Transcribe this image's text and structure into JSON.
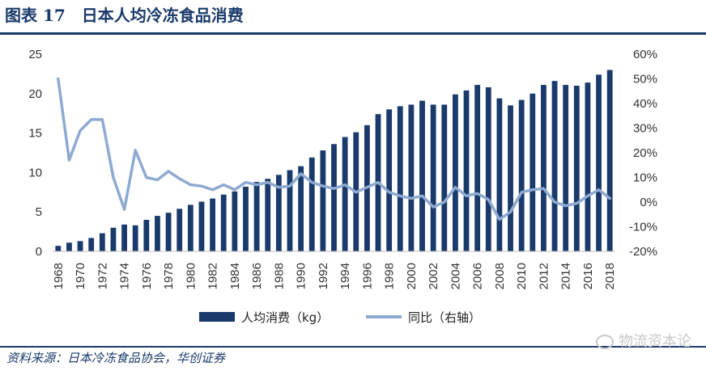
{
  "header": {
    "title": "图表 17　日本人均冷冻食品消费"
  },
  "footer": {
    "source": "资料来源：日本冷冻食品协会，华创证券",
    "watermark": "物流资本论"
  },
  "colors": {
    "bar": "#1a3a6b",
    "line": "#8eaad1",
    "title": "#1a3a6b"
  },
  "chart_data": {
    "type": "bar+line",
    "title": "日本人均冷冻食品消费",
    "categories": [
      "1968",
      "1969",
      "1970",
      "1971",
      "1972",
      "1973",
      "1974",
      "1975",
      "1976",
      "1977",
      "1978",
      "1979",
      "1980",
      "1981",
      "1982",
      "1983",
      "1984",
      "1985",
      "1986",
      "1987",
      "1988",
      "1989",
      "1990",
      "1991",
      "1992",
      "1993",
      "1994",
      "1995",
      "1996",
      "1997",
      "1998",
      "1999",
      "2000",
      "2001",
      "2002",
      "2003",
      "2004",
      "2005",
      "2006",
      "2007",
      "2008",
      "2009",
      "2010",
      "2011",
      "2012",
      "2013",
      "2014",
      "2015",
      "2016",
      "2017",
      "2018"
    ],
    "x_tick_labels": [
      "1968",
      "1970",
      "1972",
      "1974",
      "1976",
      "1978",
      "1980",
      "1982",
      "1984",
      "1986",
      "1988",
      "1990",
      "1992",
      "1994",
      "1996",
      "1998",
      "2000",
      "2002",
      "2004",
      "2006",
      "2008",
      "2010",
      "2012",
      "2014",
      "2016",
      "2018"
    ],
    "series": [
      {
        "name": "人均消费（kg）",
        "type": "bar",
        "axis": "left",
        "values": [
          0.7,
          1.1,
          1.3,
          1.7,
          2.3,
          3.0,
          3.4,
          3.3,
          4.0,
          4.5,
          4.9,
          5.4,
          5.9,
          6.3,
          6.7,
          7.2,
          7.6,
          8.2,
          8.8,
          9.2,
          9.7,
          10.3,
          10.8,
          11.9,
          12.8,
          13.6,
          14.5,
          15.1,
          16.0,
          17.4,
          18.0,
          18.4,
          18.6,
          19.1,
          18.6,
          18.6,
          19.9,
          20.4,
          21.1,
          20.8,
          19.4,
          18.5,
          19.2,
          20.0,
          21.1,
          21.6,
          21.1,
          21.0,
          21.4,
          22.4,
          23.0
        ]
      },
      {
        "name": "同比（右轴）",
        "type": "line",
        "axis": "right",
        "values": [
          50,
          17,
          29,
          33.5,
          33.5,
          10,
          -3,
          21,
          10,
          9,
          12.5,
          9.5,
          7,
          6.5,
          5,
          7,
          5,
          8,
          7,
          8,
          6,
          6.5,
          11.5,
          8,
          6.5,
          5.5,
          7,
          4,
          6,
          8,
          4,
          2.5,
          1.5,
          2.5,
          -2,
          0,
          6,
          2.5,
          3.5,
          1,
          -7,
          -4,
          4,
          5,
          5.5,
          0,
          -1.5,
          -0.5,
          2.5,
          5,
          1.5
        ]
      }
    ],
    "y_left": {
      "min": 0,
      "max": 25,
      "ticks": [
        "0",
        "5",
        "10",
        "15",
        "20",
        "25"
      ]
    },
    "y_right": {
      "min": -20,
      "max": 60,
      "ticks": [
        "-20%",
        "-10%",
        "0%",
        "10%",
        "20%",
        "30%",
        "40%",
        "50%",
        "60%"
      ]
    },
    "legend_position": "bottom-center",
    "grid": false
  }
}
